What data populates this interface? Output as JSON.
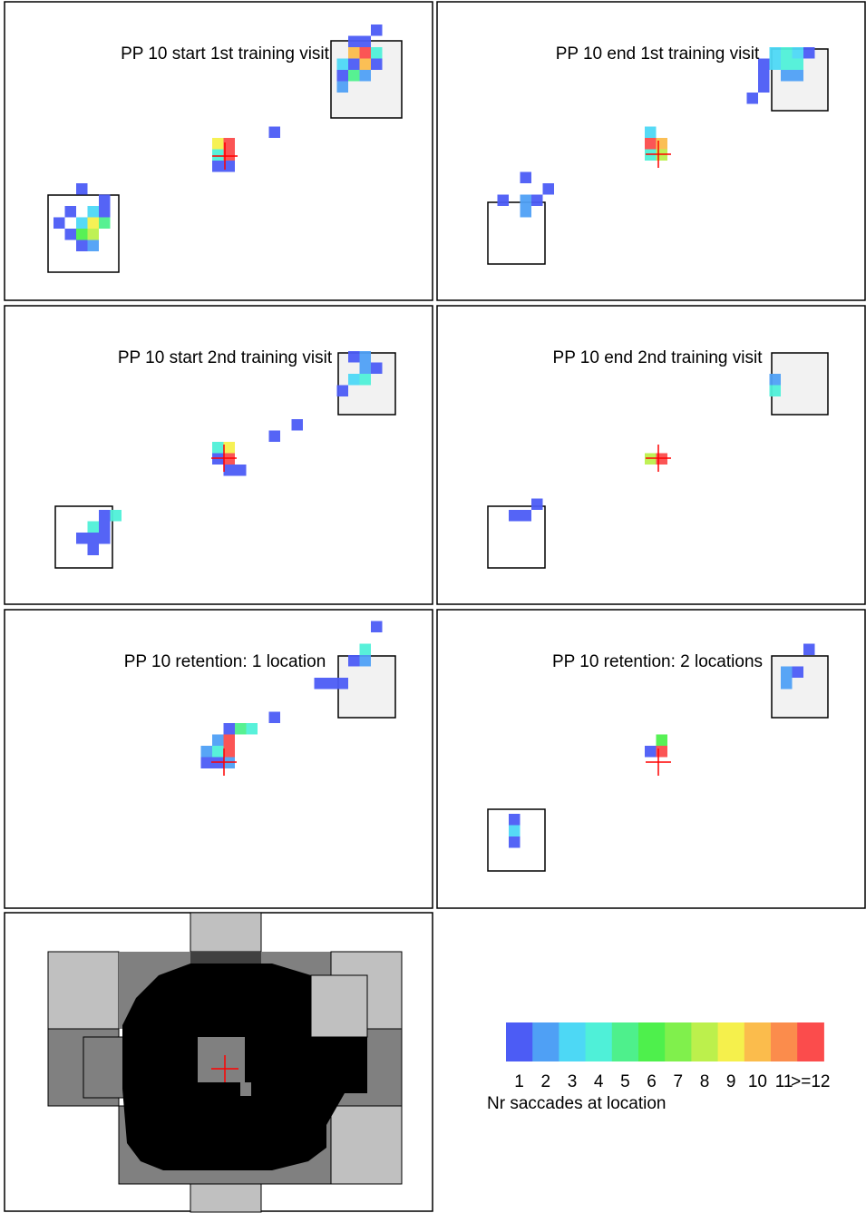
{
  "chart_data": [
    {
      "type": "heatmap",
      "title": "PP 10 start 1st training visit",
      "x": [
        32,
        30,
        31,
        30,
        31,
        32,
        29,
        30,
        31,
        32,
        29,
        30,
        31,
        29,
        23,
        18,
        19,
        18,
        19,
        18,
        19,
        6,
        8,
        5,
        7,
        8,
        4,
        6,
        7,
        8,
        5,
        6,
        7,
        6,
        7
      ],
      "y": [
        2,
        3,
        3,
        4,
        4,
        4,
        5,
        5,
        5,
        5,
        6,
        6,
        6,
        7,
        11,
        12,
        12,
        13,
        13,
        14,
        14,
        16,
        17,
        18,
        18,
        18,
        19,
        19,
        19,
        19,
        20,
        20,
        20,
        21,
        21
      ],
      "values": [
        1,
        1,
        1,
        10,
        12,
        4,
        3,
        1,
        10,
        1,
        1,
        5,
        2,
        2,
        1,
        9,
        12,
        4,
        12,
        1,
        1,
        1,
        1,
        1,
        3,
        1,
        1,
        3,
        9,
        5,
        1,
        6,
        8,
        1,
        2
      ]
    },
    {
      "type": "heatmap",
      "title": "PP 10 end 1st training visit",
      "x": [
        29,
        30,
        31,
        32,
        28,
        29,
        30,
        31,
        28,
        30,
        31,
        28,
        27,
        18,
        18,
        19,
        18,
        19,
        7,
        9,
        5,
        7,
        8,
        7
      ],
      "y": [
        4,
        4,
        4,
        4,
        5,
        5,
        5,
        5,
        6,
        6,
        6,
        7,
        8,
        11,
        12,
        12,
        13,
        13,
        15,
        16,
        17,
        17,
        17,
        18
      ],
      "values": [
        3,
        4,
        3,
        1,
        1,
        3,
        4,
        4,
        1,
        2,
        2,
        1,
        1,
        3,
        12,
        10,
        4,
        8,
        1,
        1,
        1,
        2,
        1,
        2
      ]
    },
    {
      "type": "heatmap",
      "title": "PP 10 start 2nd training visit",
      "x": [
        30,
        31,
        31,
        32,
        31,
        30,
        29,
        25,
        23,
        18,
        19,
        18,
        19,
        19,
        20,
        8,
        9,
        7,
        8,
        6,
        7,
        8,
        7
      ],
      "y": [
        4,
        4,
        5,
        5,
        6,
        6,
        7,
        10,
        11,
        12,
        12,
        13,
        13,
        14,
        14,
        18,
        18,
        19,
        19,
        20,
        20,
        20,
        21
      ],
      "values": [
        1,
        2,
        2,
        1,
        4,
        3,
        1,
        1,
        1,
        4,
        9,
        1,
        12,
        1,
        1,
        1,
        4,
        4,
        1,
        1,
        1,
        1,
        1
      ]
    },
    {
      "type": "heatmap",
      "title": "PP 10 end 2nd training visit",
      "x": [
        29,
        29,
        18,
        19,
        8,
        6,
        7
      ],
      "y": [
        6,
        7,
        13,
        13,
        17,
        18,
        18
      ],
      "values": [
        2,
        4,
        8,
        12,
        1,
        1,
        1
      ]
    },
    {
      "type": "heatmap",
      "title": "PP 10 retention: 1 location",
      "x": [
        32,
        31,
        30,
        31,
        27,
        28,
        29,
        23,
        19,
        20,
        21,
        18,
        19,
        17,
        18,
        19,
        17,
        18,
        19
      ],
      "y": [
        1,
        3,
        4,
        4,
        6,
        6,
        6,
        9,
        10,
        10,
        10,
        11,
        11,
        12,
        12,
        12,
        13,
        13,
        13
      ],
      "values": [
        1,
        4,
        1,
        2,
        1,
        1,
        1,
        1,
        1,
        5,
        4,
        2,
        12,
        2,
        4,
        12,
        1,
        1,
        2
      ]
    },
    {
      "type": "heatmap",
      "title": "PP 10 retention: 2 locations",
      "x": [
        32,
        31,
        30,
        30,
        19,
        18,
        19,
        6,
        6,
        6
      ],
      "y": [
        3,
        5,
        5,
        6,
        11,
        12,
        12,
        18,
        19,
        20
      ],
      "values": [
        1,
        1,
        2,
        2,
        6,
        1,
        12,
        1,
        3,
        1
      ]
    }
  ],
  "colorbar": {
    "colors": [
      "#4c5cf5",
      "#4fa0f5",
      "#4dd8f5",
      "#4ff0d8",
      "#4ef08c",
      "#4ef04c",
      "#80f04c",
      "#bcf04c",
      "#f5f04c",
      "#fbbc4c",
      "#fb8c4c",
      "#fb4c4c"
    ],
    "labels": [
      "1",
      "2",
      "3",
      "4",
      "5",
      "6",
      "7",
      "8",
      "9",
      "10",
      "11",
      ">=12"
    ],
    "title": "Nr saccades at location"
  }
}
